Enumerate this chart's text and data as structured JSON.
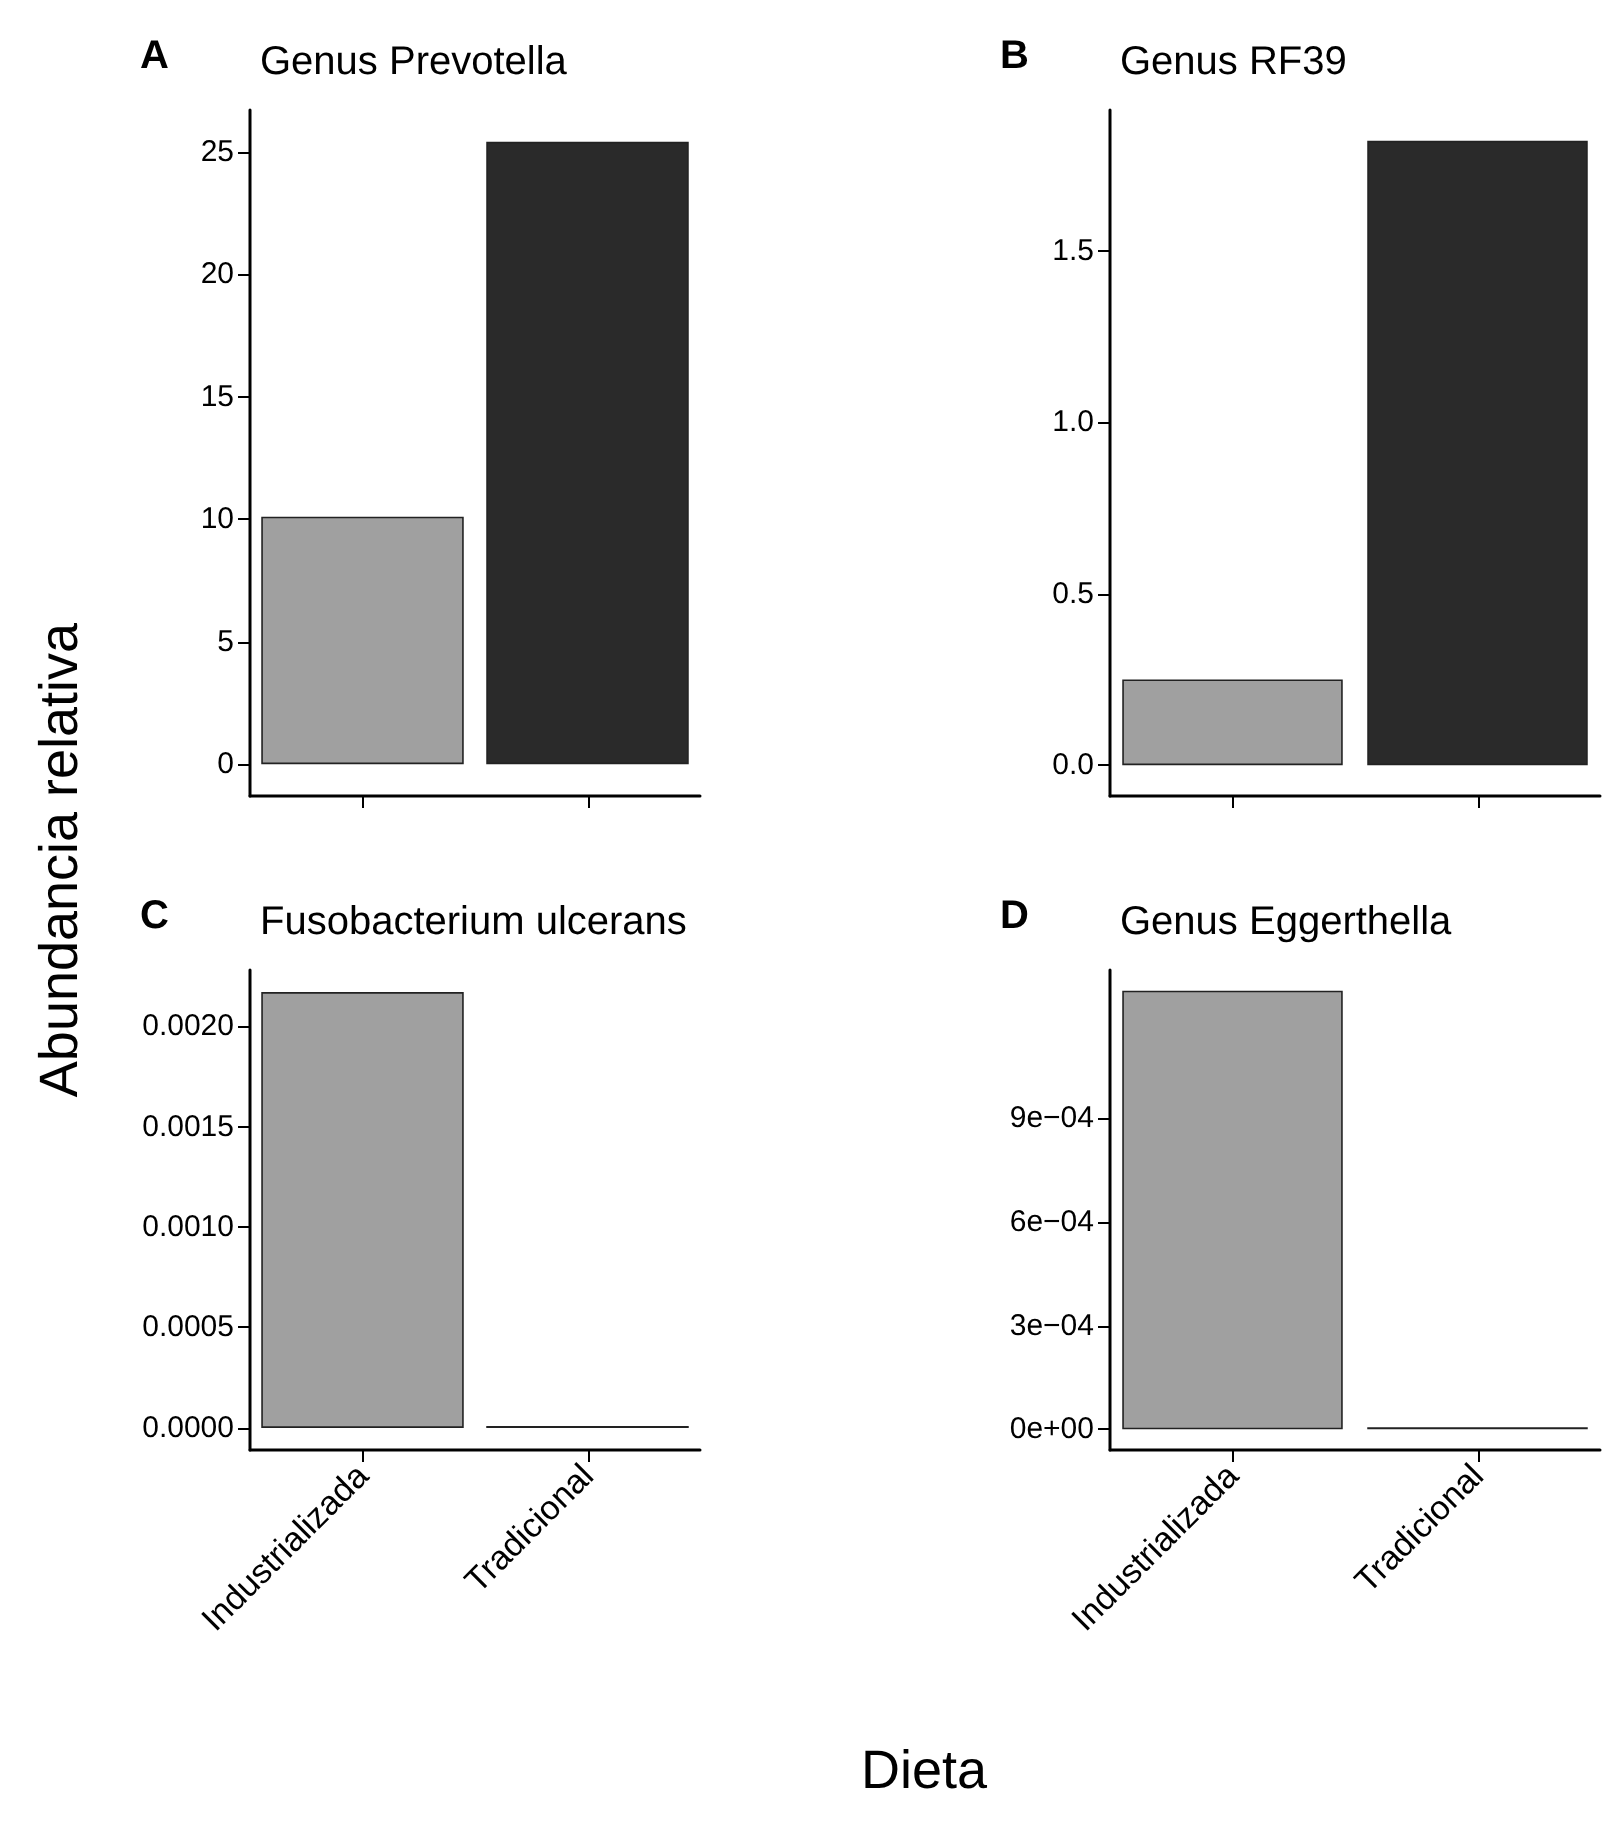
{
  "chart_data": [
    {
      "type": "bar",
      "title": "Genus Prevotella",
      "ylabel": "Abundancia relativa",
      "annotations": [
        "A"
      ],
      "categories": [
        null,
        null
      ],
      "values": [
        10.1,
        25.4
      ],
      "colors": [
        "#a0a0a0",
        "#2a2a2a"
      ],
      "ylim": [
        -1.3,
        26.7
      ],
      "yticks": [
        0,
        5,
        10,
        15,
        20,
        25
      ],
      "grid": false,
      "tick_labels": "y"
    },
    {
      "type": "bar",
      "title": "Genus RF39",
      "annotations": [
        "B"
      ],
      "categories": [
        null,
        null
      ],
      "values": [
        0.25,
        1.82
      ],
      "colors": [
        "#a0a0a0",
        "#2a2a2a"
      ],
      "ylim": [
        -0.09,
        1.91
      ],
      "yticks": [
        {
          "value": 0,
          "label": "0.0"
        },
        {
          "value": 0.5,
          "label": "0.5"
        },
        {
          "value": 1,
          "label": "1.0"
        },
        {
          "value": 1.5,
          "label": "1.5"
        }
      ],
      "grid": false,
      "tick_labels": "y"
    },
    {
      "type": "bar",
      "title": "Fusobacterium ulcerans",
      "xlabel": "Dieta",
      "annotations": [
        "C"
      ],
      "categories": [
        "Industrializada",
        "Tradicional"
      ],
      "values": [
        0.00217,
        0
      ],
      "colors": [
        "#a0a0a0",
        "#2a2a2a"
      ],
      "ylim": [
        -0.00011,
        0.00228
      ],
      "yticks": [
        {
          "value": 0,
          "label": "0.0000"
        },
        {
          "value": 0.0005,
          "label": "0.0005"
        },
        {
          "value": 0.001,
          "label": "0.0010"
        },
        {
          "value": 0.0015,
          "label": "0.0015"
        },
        {
          "value": 0.002,
          "label": "0.0020"
        }
      ],
      "grid": false
    },
    {
      "type": "bar",
      "title": "Genus Eggerthella",
      "annotations": [
        "D"
      ],
      "categories": [
        "Industrializada",
        "Tradicional"
      ],
      "values": [
        0.00127,
        0
      ],
      "colors": [
        "#a0a0a0",
        "#2a2a2a"
      ],
      "ylim": [
        -6e-05,
        0.00133
      ],
      "yticks": [
        {
          "value": 0,
          "label": "0e+00"
        },
        {
          "value": 0.0003,
          "label": "3e−04"
        },
        {
          "value": 0.0006,
          "label": "6e−04"
        },
        {
          "value": 0.0009,
          "label": "9e−04"
        }
      ],
      "grid": false
    }
  ]
}
